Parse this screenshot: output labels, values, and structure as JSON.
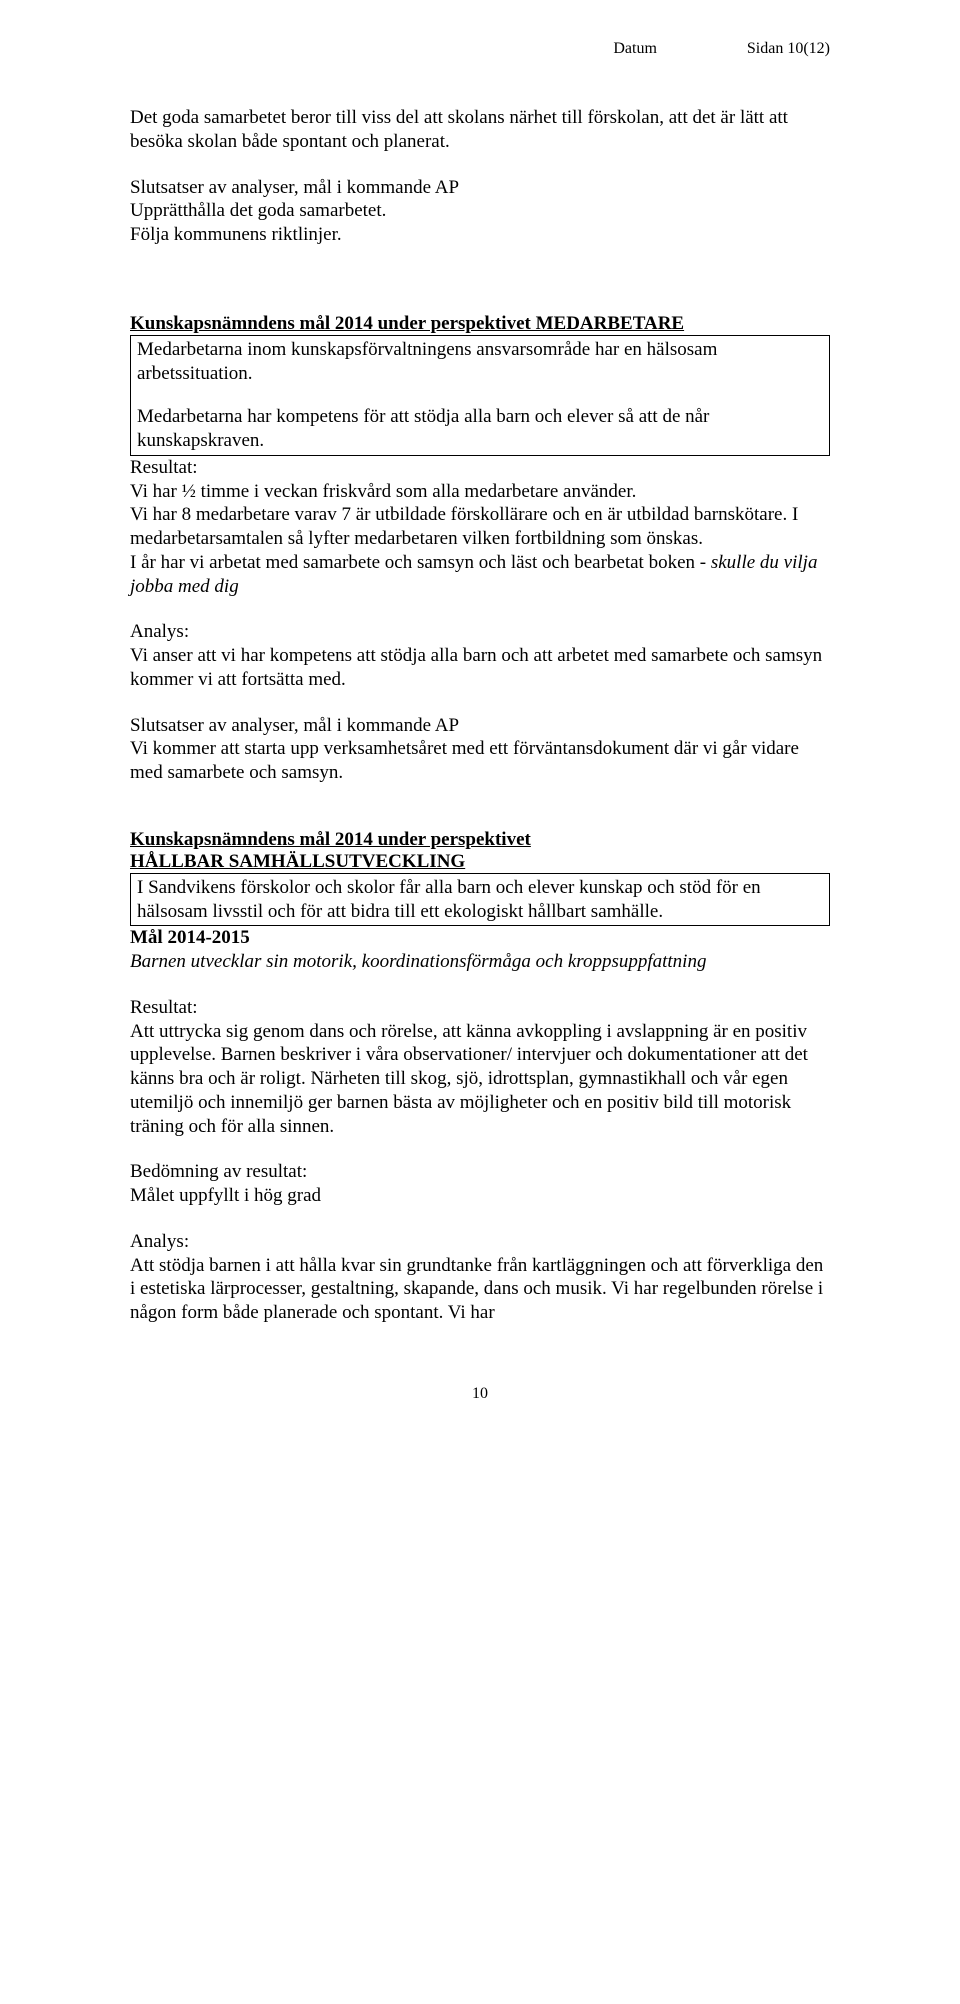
{
  "header": {
    "datum": "Datum",
    "sidan": "Sidan 10(12)"
  },
  "p1": "Det goda samarbetet beror till viss del att skolans närhet till förskolan, att det är lätt att besöka skolan både spontant och planerat.",
  "slutsats1_head": "Slutsatser av analyser, mål i kommande AP",
  "slutsats1_l1": "Upprätthålla det goda samarbetet.",
  "slutsats1_l2": "Följa kommunens riktlinjer.",
  "box1_head": "Kunskapsnämndens mål 2014 under perspektivet MEDARBETARE",
  "box1_p1": "Medarbetarna inom kunskapsförvaltningens ansvarsområde har en hälsosam arbetssituation.",
  "box1_p2": "Medarbetarna har kompetens för att stödja alla barn och elever så att de når kunskapskraven.",
  "res_label": "Resultat:",
  "res1_l1": "Vi har ½ timme i veckan friskvård som alla medarbetare använder.",
  "res1_l2": "Vi har 8 medarbetare varav 7 är utbildade förskollärare och en är utbildad barnskötare. I medarbetarsamtalen så lyfter medarbetaren vilken fortbildning som önskas.",
  "res1_l3a": "I år har vi arbetat med samarbete och samsyn och läst och bearbetat boken - ",
  "res1_l3b": "skulle du vilja jobba med dig",
  "analys_label": "Analys:",
  "analys1": "Vi anser att vi har kompetens att stödja alla barn och att arbetet med samarbete och samsyn kommer vi att fortsätta med.",
  "slutsats2_head": "Slutsatser av analyser, mål i kommande AP",
  "slutsats2_body": "Vi kommer att starta upp verksamhetsåret med ett förväntansdokument där vi går vidare med samarbete och samsyn.",
  "box2_head1": "Kunskapsnämndens mål 2014 under perspektivet",
  "box2_head2": "HÅLLBAR SAMHÄLLSUTVECKLING",
  "box2_body": "I Sandvikens förskolor och skolor får alla barn och elever kunskap och stöd för en hälsosam livsstil och för att bidra till ett ekologiskt hållbart samhälle.",
  "mal_head": "Mål 2014-2015",
  "mal_body": "Barnen utvecklar sin motorik, koordinationsförmåga och kroppsuppfattning",
  "res2": "Att uttrycka sig genom dans och rörelse, att känna avkoppling i avslappning är en positiv upplevelse. Barnen beskriver i våra observationer/ intervjuer och dokumentationer att det känns bra och är roligt. Närheten till skog, sjö, idrottsplan, gymnastikhall och vår egen utemiljö och innemiljö ger barnen bästa av möjligheter och en positiv bild till motorisk träning och för alla sinnen.",
  "bedom_label": "Bedömning av resultat:",
  "bedom_body": "Målet uppfyllt i hög grad",
  "analys2": "Att stödja barnen i att hålla kvar sin grundtanke från kartläggningen och att förverkliga den i estetiska lärprocesser, gestaltning, skapande, dans och musik. Vi har regelbunden rörelse i någon form både planerade och spontant. Vi har",
  "page_number": "10"
}
